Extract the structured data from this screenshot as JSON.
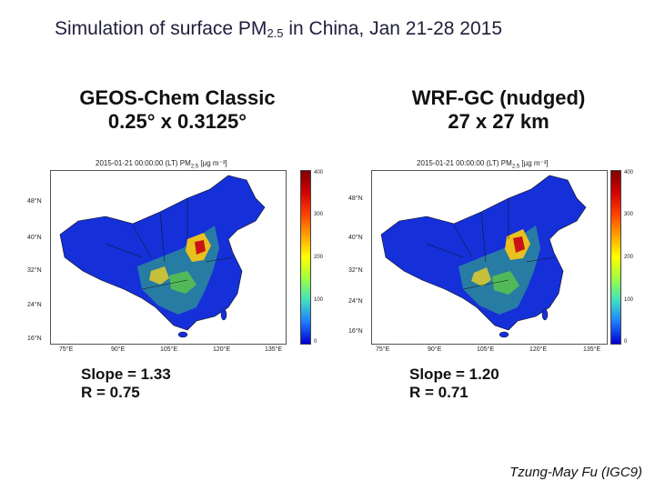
{
  "slide": {
    "title": "Simulation of surface PM",
    "title_sub": "2.5",
    "title_rest": " in China, Jan 21-28 2015",
    "credit": "Tzung-May Fu (IGC9)"
  },
  "axes": {
    "lat_labels": [
      "48°N",
      "40°N",
      "32°N",
      "24°N",
      "16°N"
    ],
    "lon_labels": [
      "75°E",
      "90°E",
      "105°E",
      "120°E",
      "135°E"
    ],
    "colorbar_ticks": [
      "400",
      "300",
      "200",
      "100",
      "0"
    ]
  },
  "panels": [
    {
      "title_line1": "GEOS-Chem Classic",
      "title_line2": "0.25° x 0.3125°",
      "map_caption": "2015-01-21 00:00:00 (LT) PM",
      "map_caption_sub": "2.5",
      "map_caption_unit": " [µg m⁻³]",
      "slope": "Slope = 1.33",
      "r": "R = 0.75"
    },
    {
      "title_line1": "WRF-GC (nudged)",
      "title_line2": "27 x 27 km",
      "map_caption": "2015-01-21 00:00:00 (LT) PM",
      "map_caption_sub": "2.5",
      "map_caption_unit": " [µg m⁻³]",
      "slope": "Slope = 1.20",
      "r": "R = 0.71"
    }
  ],
  "colors": {
    "background_low": "#1530d8",
    "high": "#b00000"
  }
}
